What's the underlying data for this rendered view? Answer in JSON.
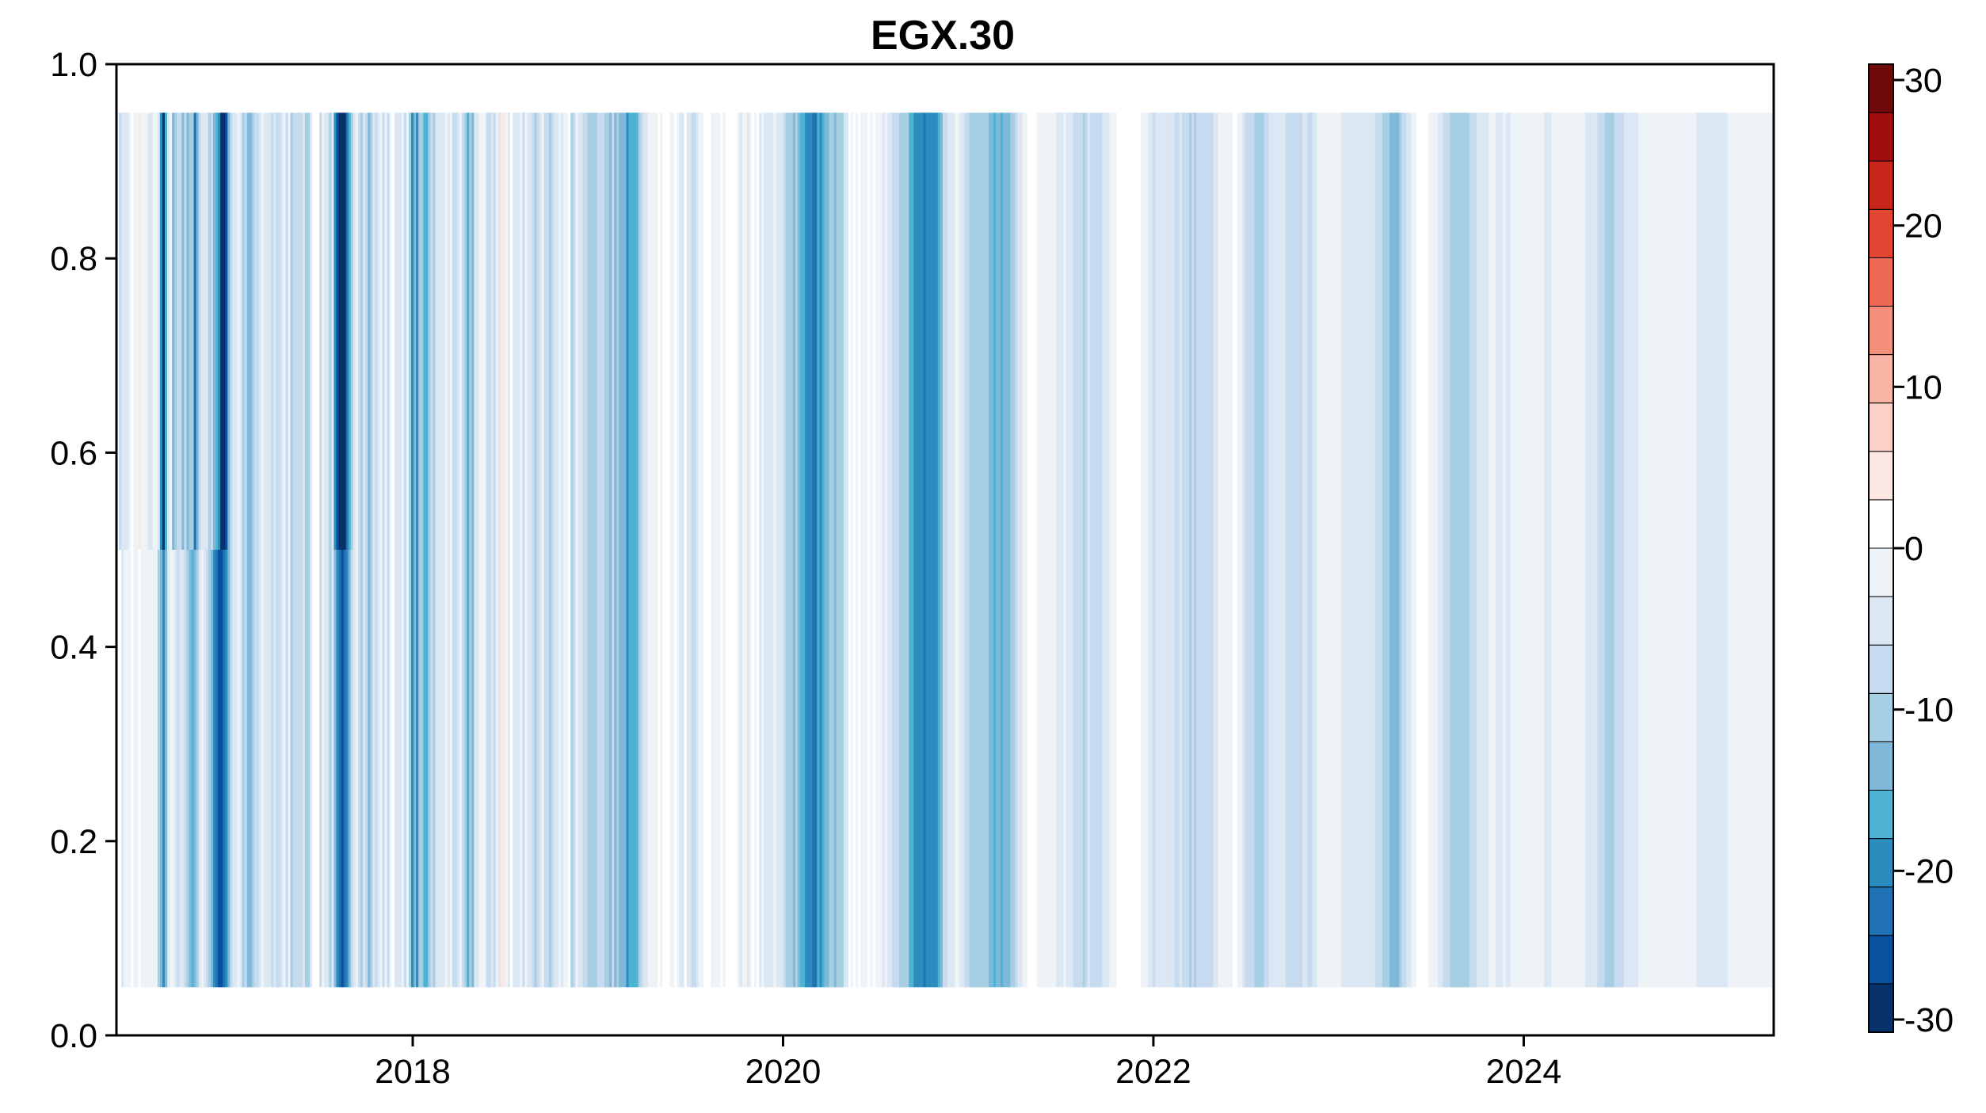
{
  "chart_data": {
    "type": "heatmap",
    "title": "EGX.30",
    "xlabel": "",
    "ylabel": "",
    "x_range": [
      2016.4,
      2025.35
    ],
    "y_range": [
      0.0,
      1.0
    ],
    "data_y_range": [
      0.05,
      0.95
    ],
    "x_ticks": [
      {
        "value": 2018,
        "label": "2018"
      },
      {
        "value": 2020,
        "label": "2020"
      },
      {
        "value": 2022,
        "label": "2022"
      },
      {
        "value": 2024,
        "label": "2024"
      }
    ],
    "y_ticks": [
      {
        "value": 0.0,
        "label": "0.0"
      },
      {
        "value": 0.2,
        "label": "0.2"
      },
      {
        "value": 0.4,
        "label": "0.4"
      },
      {
        "value": 0.6,
        "label": "0.6"
      },
      {
        "value": 0.8,
        "label": "0.8"
      },
      {
        "value": 1.0,
        "label": "1.0"
      }
    ],
    "y_grid": [
      0.05,
      0.15,
      0.25,
      0.35,
      0.45,
      0.55,
      0.65,
      0.75,
      0.85,
      0.95
    ],
    "z_matrix": [
      [
        0,
        -9,
        -6,
        -5,
        -5,
        -2,
        2,
        -1,
        -3,
        3,
        -2,
        -1,
        -3,
        -4,
        -4,
        -1,
        -2,
        -4,
        -20,
        -28,
        -18,
        -6,
        -2,
        -14,
        -10,
        -9,
        -7,
        -13,
        -8,
        -14,
        -10,
        -12,
        -22,
        -13,
        -8,
        -4,
        -5,
        -6,
        -10,
        -8,
        -14,
        -16,
        -20,
        -29,
        -30,
        -27,
        -15,
        -8,
        -5,
        -6,
        -3,
        -4,
        -12,
        -9,
        -15,
        -14,
        -11,
        -9,
        -8,
        -5,
        -3,
        -5,
        -5,
        -4,
        -9,
        -6,
        -8,
        -7,
        -4,
        -1,
        -7,
        -1,
        -10,
        -7,
        -8,
        -7,
        -9,
        -6,
        -10,
        -11,
        -5,
        2,
        2,
        2,
        -7,
        -2,
        -6,
        -4,
        -10,
        -5,
        -20,
        -25,
        -30,
        -32,
        -29,
        -24,
        -17,
        -10,
        -5,
        -1,
        -9,
        -11,
        -6,
        -9,
        -13,
        -12,
        -5,
        -8,
        -4,
        -3,
        -8,
        -2,
        -7,
        -3,
        0,
        -6,
        -4,
        -4,
        -2,
        -9,
        -3,
        -11,
        -19,
        -13,
        -20,
        -11,
        -10,
        -18,
        -16,
        -11,
        -9,
        -10,
        -6,
        -4,
        -4,
        -5,
        -1,
        -5,
        -2,
        -8,
        -7,
        -5,
        -3,
        -8,
        -11,
        -16,
        -12,
        -15,
        -6,
        -6,
        -1,
        -1,
        -2,
        -7,
        -7,
        -5,
        -8,
        -3,
        -5,
        3,
        4,
        -2,
        -5,
        0,
        -5,
        -5,
        -5,
        -2,
        -7,
        -3,
        -6,
        -4,
        -7,
        -10,
        -7,
        -5,
        -3,
        -8,
        -8,
        -10,
        -8,
        -5,
        -4,
        -3,
        -4,
        -1,
        -3,
        0,
        -11,
        -9,
        -3,
        -5,
        -4,
        -7,
        -9,
        -11,
        -10,
        -12,
        -10,
        -9,
        -8,
        -9,
        -10,
        -12,
        -13,
        -8,
        -13,
        -12,
        -15,
        -15,
        -13,
        -19,
        -17,
        -17,
        -16,
        -18,
        -11,
        -7,
        -6,
        -4,
        -2,
        -3,
        -2,
        -1,
        0,
        -1,
        1,
        2,
        0,
        -1,
        -2,
        0,
        -3,
        -6,
        -5,
        0,
        -4,
        -6,
        -7,
        -7,
        -6,
        -3,
        -1,
        1,
        1,
        1,
        -1,
        -2,
        -2,
        -2,
        0,
        -1,
        0,
        2,
        0,
        0,
        0,
        -2,
        -4,
        -1,
        -2,
        -5,
        -1,
        1,
        -1,
        0,
        -4,
        -3,
        -5,
        -6,
        -5,
        -5,
        -3,
        -4,
        -4,
        -5,
        -9,
        -10,
        -11,
        -11,
        -13,
        -10,
        -14,
        -16,
        -18,
        -20,
        -21,
        -19,
        -23,
        -24,
        -18,
        -20,
        -17,
        -13,
        -14,
        -12,
        -12,
        -13,
        -12,
        -11,
        -10,
        -4,
        -4,
        0,
        -2,
        1,
        -1,
        1,
        -1,
        -2,
        -1,
        0,
        -1,
        0,
        -2,
        -2,
        -2,
        -5,
        -3,
        -4,
        -5,
        -7,
        -8,
        -9,
        -12,
        -10,
        -12,
        -12,
        -16,
        -18,
        -20,
        -21,
        -21,
        -21,
        -22,
        -20,
        -21,
        -21,
        -19,
        -20,
        -16,
        -13,
        -9,
        -9,
        -6,
        -5,
        -6,
        -3,
        -3,
        -4,
        -5,
        -8,
        -9,
        -10,
        -10,
        -11,
        -10,
        -10,
        -10,
        -11,
        -12,
        -13,
        -15,
        -16,
        -15,
        -15,
        -17,
        -15,
        -14,
        -13,
        -11,
        -10,
        -8,
        -6,
        -5,
        -3,
        -1,
        0,
        0,
        1,
        0,
        -1,
        -1,
        -2,
        -2,
        -1,
        -1,
        -2,
        -2,
        -4,
        -5,
        -4,
        -3,
        -4,
        -4,
        -5,
        -7,
        -8,
        -7,
        -8,
        -10,
        -8,
        -6,
        -8,
        -8,
        -8,
        -7,
        -7,
        -6,
        -5,
        -4,
        -2,
        -2,
        -1,
        0,
        1,
        1,
        1,
        2,
        2,
        1,
        0,
        0,
        1,
        -1,
        -2,
        -3,
        -5,
        -6,
        -7,
        -6,
        -6,
        -5,
        -4,
        -4,
        -4,
        -5,
        -5,
        -7,
        -7,
        -6,
        -7,
        -9,
        -9,
        -10,
        -9,
        -11,
        -9,
        -8,
        -8,
        -8,
        -9,
        -8,
        -8,
        -5,
        -4,
        -3,
        -2,
        -1,
        -1,
        -1,
        -1,
        0,
        0,
        -1,
        -3,
        -5,
        -7,
        -9,
        -8,
        -9,
        -10,
        -11,
        -10,
        -10,
        -9,
        -7,
        -4,
        -4,
        -4,
        -4,
        -6,
        -5,
        -6,
        -8,
        -8,
        -8,
        -9,
        -9,
        -8,
        -7,
        -6,
        -6,
        -8,
        -7,
        -5,
        -4,
        -2,
        -2,
        -2,
        -1,
        -1,
        -2,
        -1,
        -2,
        -3,
        -3,
        -4,
        -5,
        -4,
        -5,
        -5,
        -6,
        -6,
        -6,
        -5,
        -5,
        -5,
        -5,
        -6,
        -6,
        -7,
        -8,
        -9,
        -10,
        -12,
        -12,
        -13,
        -14,
        -14,
        -13,
        -12,
        -9,
        -7,
        -6,
        -4,
        -1,
        -1,
        0,
        0,
        0,
        1,
        0,
        -1,
        -1,
        -3,
        -3,
        -4,
        -5,
        -8,
        -9,
        -9,
        -10,
        -10,
        -12,
        -12,
        -12,
        -12,
        -12,
        -10,
        -9,
        -9,
        -7,
        -5,
        -4,
        -4,
        -4,
        -4,
        -3,
        -3,
        -3,
        -5,
        -5,
        -5,
        -3,
        -4,
        -4,
        -3,
        -2,
        -2,
        -2,
        -2,
        -2,
        -2,
        -2,
        -1,
        -2,
        -2,
        -2,
        -2,
        -3,
        -4,
        -4,
        -4,
        -3,
        -3,
        -2,
        -2,
        -1,
        -1,
        -1,
        -1,
        -2,
        -2,
        -2,
        -2,
        -3,
        -3,
        -4,
        -4,
        -5,
        -5,
        -6,
        -7,
        -8,
        -9,
        -10,
        -10,
        -10,
        -10,
        -9,
        -8,
        -7,
        -7,
        -6,
        -5,
        -5,
        -4,
        -4,
        -4,
        -3,
        -3,
        -3,
        -2,
        -3,
        -2,
        -2,
        -2,
        -1,
        -1,
        -1,
        -1,
        -2,
        -2,
        -2,
        -1,
        -2,
        -2,
        -2,
        -3,
        -3,
        -3,
        -3,
        -3,
        -4,
        -4,
        -5,
        -5,
        -5,
        -5,
        -5,
        -5,
        -5,
        -4,
        -4,
        -4,
        -4,
        -3,
        -3,
        -3,
        -3,
        -3,
        -2,
        -2,
        -2,
        -2,
        -2,
        -2,
        -2,
        -2,
        -2,
        -2,
        -2,
        -2,
        -2,
        -2
      ],
      [
        0,
        0,
        -5,
        -3,
        -2,
        -1,
        1,
        -1,
        -3,
        0,
        -1,
        -3,
        -3,
        -1,
        -1,
        -2,
        -3,
        -10,
        -15,
        -20,
        -14,
        -6,
        -3,
        -2,
        -5,
        -7,
        -4,
        -5,
        -9,
        -10,
        -13,
        -16,
        -14,
        -11,
        -6,
        -3,
        -6,
        -9,
        -12,
        -13,
        -21,
        -24,
        -26,
        -25,
        -22,
        -20,
        -13,
        -7,
        -5,
        -6,
        -3,
        -4,
        -12,
        -9,
        -15,
        -14,
        -11,
        -9,
        -8,
        -5,
        -3,
        -5,
        -5,
        -4,
        -9,
        -6,
        -8,
        -7,
        -4,
        -1,
        -7,
        -1,
        -10,
        -7,
        -8,
        -7,
        -9,
        -6,
        -10,
        -11,
        -5,
        2,
        2,
        2,
        -7,
        -2,
        -6,
        -4,
        -10,
        -5,
        -15,
        -20,
        -24,
        -25,
        -23,
        -20,
        -14,
        -8,
        -4,
        -1,
        -8,
        -11,
        -6,
        -9,
        -13,
        -12,
        -5,
        -8,
        -4,
        -3,
        -8,
        -2,
        -7,
        -3,
        0,
        -6,
        -4,
        -4,
        -2,
        -9,
        -3,
        -11,
        -19,
        -13,
        -20,
        -11,
        -10,
        -18,
        -16,
        -11,
        -9,
        -10,
        -6,
        -4,
        -4,
        -5,
        -1,
        -5,
        -2,
        -8,
        -7,
        -5,
        -3,
        -8,
        -11,
        -16,
        -12,
        -15,
        -6,
        -6,
        -1,
        -1,
        -2,
        -7,
        -7,
        -5,
        -8,
        -3,
        -5,
        3,
        4,
        -2,
        -5,
        0,
        -5,
        -5,
        -5,
        -2,
        -7,
        -3,
        -6,
        -4,
        -7,
        -10,
        -7,
        -5,
        -3,
        -8,
        -8,
        -10,
        -8,
        -5,
        -4,
        -3,
        -4,
        -1,
        -3,
        0,
        -11,
        -9,
        -3,
        -5,
        -4,
        -7,
        -9,
        -11,
        -10,
        -12,
        -10,
        -9,
        -8,
        -9,
        -10,
        -12,
        -13,
        -8,
        -13,
        -12,
        -15,
        -15,
        -13,
        -19,
        -17,
        -17,
        -16,
        -18,
        -11,
        -7,
        -6,
        -4,
        -2,
        -3,
        -2,
        -1,
        0,
        -1,
        1,
        2,
        0,
        -1,
        -2,
        0,
        -3,
        -6,
        -5,
        0,
        -4,
        -6,
        -7,
        -7,
        -6,
        -3,
        -1,
        1,
        1,
        1,
        -1,
        -2,
        -2,
        -2,
        0,
        -1,
        0,
        2,
        0,
        0,
        0,
        -2,
        -4,
        -1,
        -2,
        -5,
        -1,
        1,
        -1,
        0,
        -4,
        -3,
        -5,
        -6,
        -5,
        -5,
        -3,
        -4,
        -4,
        -5,
        -9,
        -10,
        -11,
        -11,
        -13,
        -10,
        -14,
        -16,
        -18,
        -20,
        -21,
        -19,
        -23,
        -24,
        -18,
        -20,
        -17,
        -13,
        -14,
        -12,
        -12,
        -13,
        -12,
        -11,
        -10,
        -4,
        -4,
        0,
        -2,
        1,
        -1,
        1,
        -1,
        -2,
        -1,
        0,
        -1,
        0,
        -2,
        -2,
        -2,
        -5,
        -3,
        -4,
        -5,
        -7,
        -8,
        -9,
        -12,
        -10,
        -12,
        -12,
        -16,
        -18,
        -20,
        -21,
        -21,
        -21,
        -22,
        -20,
        -21,
        -21,
        -19,
        -20,
        -16,
        -13,
        -9,
        -9,
        -6,
        -5,
        -6,
        -3,
        -3,
        -4,
        -5,
        -8,
        -9,
        -10,
        -10,
        -11,
        -10,
        -10,
        -10,
        -11,
        -12,
        -13,
        -15,
        -16,
        -15,
        -15,
        -17,
        -15,
        -14,
        -13,
        -11,
        -10,
        -8,
        -6,
        -5,
        -3,
        -1,
        0,
        0,
        1,
        0,
        -1,
        -1,
        -2,
        -2,
        -1,
        -1,
        -2,
        -2,
        -4,
        -5,
        -4,
        -3,
        -4,
        -4,
        -5,
        -7,
        -8,
        -7,
        -8,
        -10,
        -8,
        -6,
        -8,
        -8,
        -8,
        -7,
        -7,
        -6,
        -5,
        -4,
        -2,
        -2,
        -1,
        0,
        1,
        1,
        1,
        2,
        2,
        1,
        0,
        0,
        1,
        -1,
        -2,
        -3,
        -5,
        -6,
        -7,
        -6,
        -6,
        -5,
        -4,
        -4,
        -4,
        -5,
        -5,
        -7,
        -7,
        -6,
        -7,
        -9,
        -9,
        -10,
        -9,
        -11,
        -9,
        -8,
        -8,
        -8,
        -9,
        -8,
        -8,
        -5,
        -4,
        -3,
        -2,
        -1,
        -1,
        -1,
        -1,
        0,
        0,
        -1,
        -3,
        -5,
        -7,
        -9,
        -8,
        -9,
        -10,
        -11,
        -10,
        -10,
        -9,
        -7,
        -4,
        -4,
        -4,
        -4,
        -6,
        -5,
        -6,
        -8,
        -8,
        -8,
        -9,
        -9,
        -8,
        -7,
        -6,
        -6,
        -8,
        -7,
        -5,
        -4,
        -2,
        -2,
        -2,
        -1,
        -1,
        -2,
        -1,
        -2,
        -3,
        -3,
        -4,
        -5,
        -4,
        -5,
        -5,
        -6,
        -6,
        -6,
        -5,
        -5,
        -5,
        -5,
        -6,
        -6,
        -7,
        -8,
        -9,
        -10,
        -12,
        -12,
        -13,
        -14,
        -14,
        -13,
        -12,
        -9,
        -7,
        -6,
        -4,
        -1,
        -1,
        0,
        0,
        0,
        1,
        0,
        -1,
        -1,
        -3,
        -3,
        -4,
        -5,
        -8,
        -9,
        -9,
        -10,
        -10,
        -12,
        -12,
        -12,
        -12,
        -12,
        -10,
        -9,
        -9,
        -7,
        -5,
        -4,
        -4,
        -4,
        -4,
        -3,
        -3,
        -3,
        -5,
        -5,
        -5,
        -3,
        -4,
        -4,
        -3,
        -2,
        -2,
        -2,
        -2,
        -2,
        -2,
        -2,
        -1,
        -2,
        -2,
        -2,
        -2,
        -3,
        -4,
        -4,
        -4,
        -3,
        -3,
        -2,
        -2,
        -1,
        -1,
        -1,
        -1,
        -2,
        -2,
        -2,
        -2,
        -3,
        -3,
        -4,
        -4,
        -5,
        -5,
        -6,
        -7,
        -8,
        -9,
        -10,
        -10,
        -10,
        -10,
        -9,
        -8,
        -7,
        -7,
        -6,
        -5,
        -5,
        -4,
        -4,
        -4,
        -3,
        -3,
        -3,
        -2,
        -3,
        -2,
        -2,
        -2,
        -1,
        -1,
        -1,
        -1,
        -2,
        -2,
        -2,
        -1,
        -2,
        -2,
        -2,
        -3,
        -3,
        -3,
        -3,
        -3,
        -4,
        -4,
        -5,
        -5,
        -5,
        -5,
        -5,
        -5,
        -5,
        -4,
        -4,
        -4,
        -4,
        -3,
        -3,
        -3,
        -3,
        -3,
        -2,
        -2,
        -2,
        -2,
        -2,
        -2,
        -2,
        -2,
        -2,
        -2,
        -2,
        -2,
        -2,
        -2
      ]
    ],
    "colorbar": {
      "min": -30,
      "max": 30,
      "ticks": [
        {
          "value": 30,
          "label": "30"
        },
        {
          "value": 20,
          "label": "20"
        },
        {
          "value": 10,
          "label": "10"
        },
        {
          "value": 0,
          "label": "0"
        },
        {
          "value": -10,
          "label": "-10"
        },
        {
          "value": -20,
          "label": "-20"
        },
        {
          "value": -30,
          "label": "-30"
        }
      ],
      "colors": [
        "#08306b",
        "#08519c",
        "#2171b5",
        "#2b8cbe",
        "#4eb3d3",
        "#7fb8d8",
        "#a6cfe4",
        "#c6dbef",
        "#dbe7f2",
        "#eef3f8",
        "#ffffff",
        "#fde8e4",
        "#fbd0c6",
        "#f8b4a4",
        "#f48f7c",
        "#ef6a55",
        "#e24531",
        "#c8261a",
        "#a00f0d",
        "#700a0a"
      ]
    },
    "note": ""
  }
}
